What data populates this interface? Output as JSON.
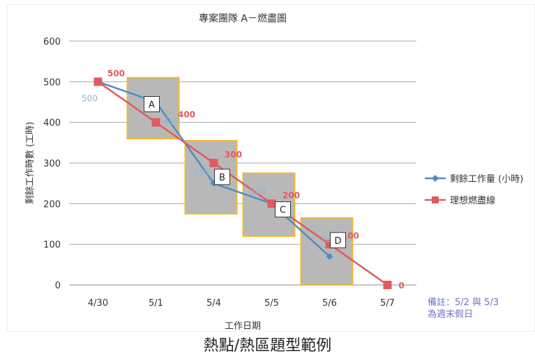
{
  "chart_data": {
    "type": "line",
    "title": "專案團隊 A－燃盡圖",
    "xlabel": "工作日期",
    "ylabel": "剩餘工作時數 (工時)",
    "ylim": [
      0,
      600
    ],
    "yticks": [
      0,
      100,
      200,
      300,
      400,
      500,
      600
    ],
    "grid": true,
    "legend_position": "right",
    "categories": [
      "4/30",
      "5/1",
      "5/4",
      "5/5",
      "5/6",
      "5/7"
    ],
    "series": [
      {
        "name": "剩餘工作量 (小時)",
        "color": "#4a8ec6",
        "marker": "diamond",
        "values": [
          500,
          450,
          250,
          200,
          70,
          null
        ],
        "value_labels": [
          "500",
          "450",
          "250",
          "200",
          "70",
          ""
        ]
      },
      {
        "name": "理想燃盡線",
        "color": "#e05a60",
        "marker": "square",
        "values": [
          500,
          400,
          300,
          200,
          100,
          0
        ],
        "value_labels": [
          "500",
          "400",
          "300",
          "200",
          "100",
          "0"
        ]
      }
    ],
    "hotspots": [
      {
        "label": "A",
        "x_from": "5/1",
        "y_from": 360,
        "y_to": 510
      },
      {
        "label": "B",
        "x_from": "5/4",
        "y_from": 175,
        "y_to": 355
      },
      {
        "label": "C",
        "x_from": "5/5",
        "y_from": 120,
        "y_to": 275
      },
      {
        "label": "D",
        "x_from": "5/6",
        "y_from": 0,
        "y_to": 165
      }
    ],
    "hotspot_fill": "#b8b8b8",
    "hotspot_border": "#f2b830"
  },
  "note": "備註：5/2 與 5/3\n為週末假日",
  "caption": "熱點/熱區題型範例"
}
